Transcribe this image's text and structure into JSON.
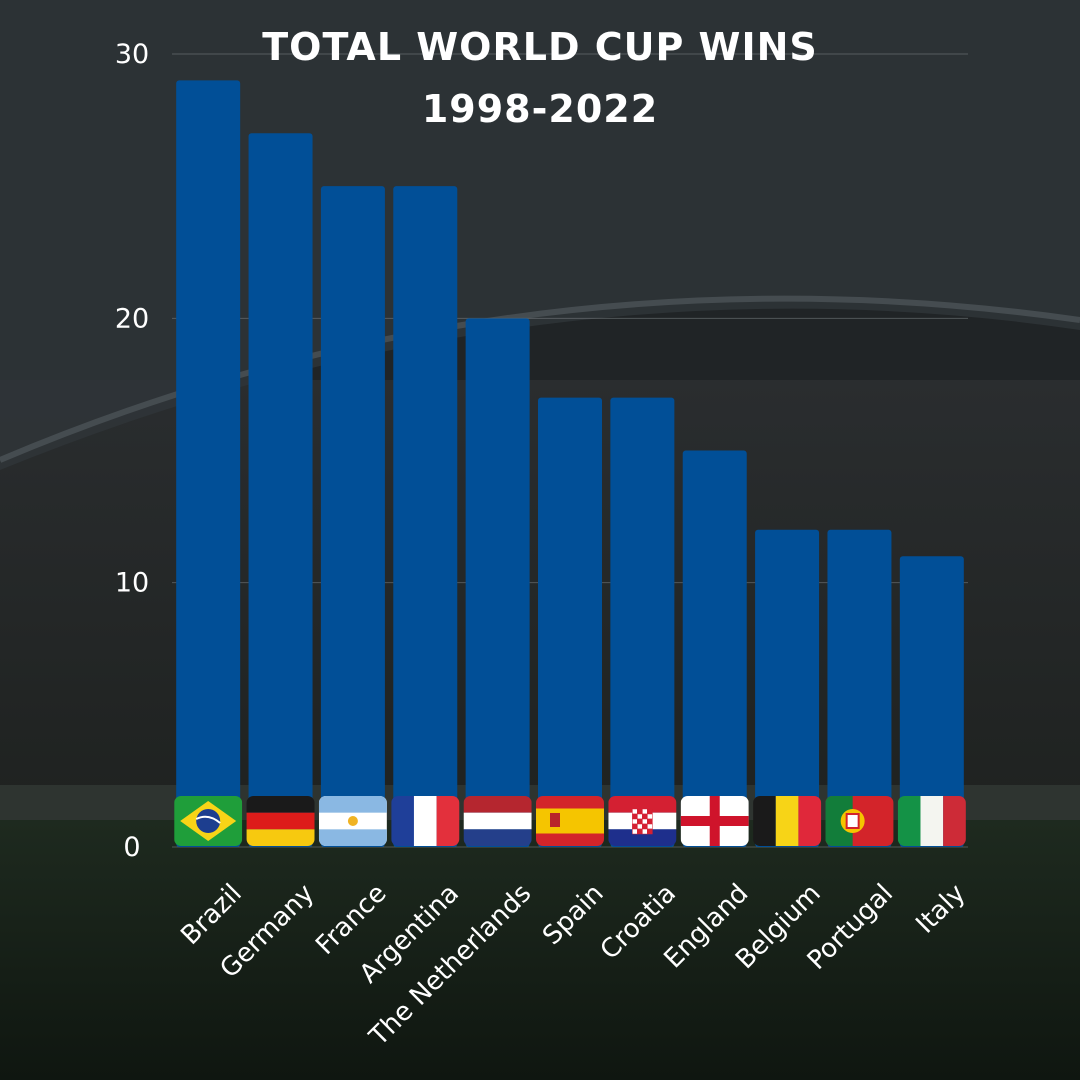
{
  "chart_data": {
    "type": "bar",
    "title": "TOTAL WORLD CUP WINS",
    "subtitle": "1998-2022",
    "xlabel": "",
    "ylabel": "",
    "categories": [
      "Brazil",
      "Germany",
      "France",
      "Argentina",
      "The Netherlands",
      "Spain",
      "Croatia",
      "England",
      "Belgium",
      "Portugal",
      "Italy"
    ],
    "values": [
      29,
      27,
      25,
      25,
      20,
      17,
      17,
      15,
      12,
      12,
      11
    ],
    "ylim": [
      0,
      30
    ],
    "yticks": [
      "0",
      "10",
      "20",
      "30"
    ],
    "grid": true,
    "legend": "none",
    "flag_icons": [
      "brazil-flag-icon",
      "germany-flag-icon",
      "argentina-flag-icon",
      "france-flag-icon",
      "netherlands-flag-icon",
      "spain-flag-icon",
      "croatia-flag-icon",
      "england-flag-icon",
      "belgium-flag-icon",
      "portugal-flag-icon",
      "italy-flag-icon"
    ],
    "colors": {
      "bar": "#014f97",
      "text": "#ffffff",
      "grid": "#7a7f82"
    }
  }
}
